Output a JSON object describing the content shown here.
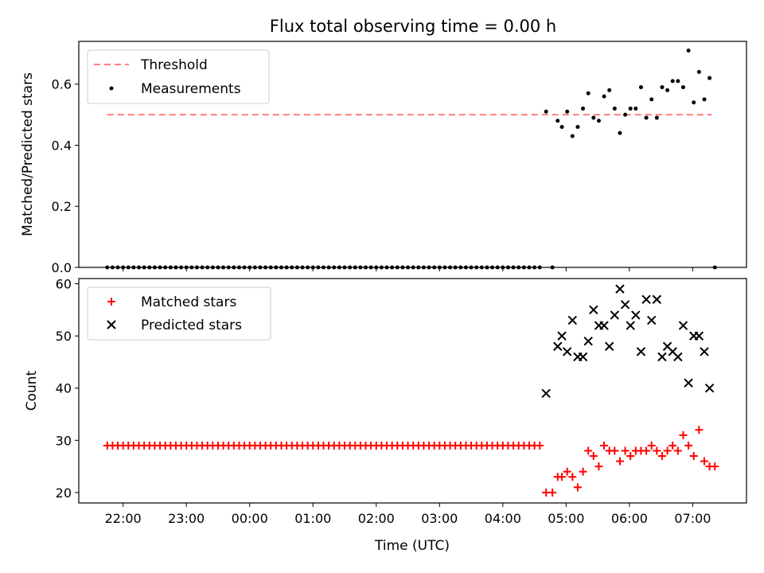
{
  "title": "Flux total observing time = 0.00 h",
  "colors": {
    "threshold": "#ff7f7f",
    "matched": "#ff0000",
    "predicted": "#000000",
    "measurement": "#000000"
  },
  "chart_data": [
    {
      "type": "scatter",
      "ylabel": "Matched/Predicted stars",
      "ylim": [
        0,
        0.74
      ],
      "yticks": [
        0.0,
        0.2,
        0.4,
        0.6
      ],
      "xlim_hours": [
        21.3,
        31.85
      ],
      "legend_position": "upper left",
      "legend": [
        {
          "key": "threshold",
          "label": "Threshold",
          "style": "dashed-line"
        },
        {
          "key": "measurements",
          "label": "Measurements",
          "style": "dot"
        }
      ],
      "threshold": {
        "x_start": "21:45",
        "x_end": "07:18",
        "y": 0.5
      },
      "series": [
        {
          "name": "Measurements",
          "zero_points": {
            "x_start": "21:45",
            "x_end": "04:37",
            "step_minutes": 5,
            "y": 0.0
          },
          "points": [
            [
              "04:41",
              0.51
            ],
            [
              "04:47",
              0.0
            ],
            [
              "04:52",
              0.48
            ],
            [
              "04:56",
              0.46
            ],
            [
              "05:01",
              0.51
            ],
            [
              "05:06",
              0.43
            ],
            [
              "05:11",
              0.46
            ],
            [
              "05:16",
              0.52
            ],
            [
              "05:21",
              0.57
            ],
            [
              "05:26",
              0.49
            ],
            [
              "05:31",
              0.48
            ],
            [
              "05:36",
              0.56
            ],
            [
              "05:41",
              0.58
            ],
            [
              "05:46",
              0.52
            ],
            [
              "05:51",
              0.44
            ],
            [
              "05:56",
              0.5
            ],
            [
              "06:01",
              0.52
            ],
            [
              "06:06",
              0.52
            ],
            [
              "06:11",
              0.59
            ],
            [
              "06:16",
              0.49
            ],
            [
              "06:21",
              0.55
            ],
            [
              "06:26",
              0.49
            ],
            [
              "06:31",
              0.59
            ],
            [
              "06:36",
              0.58
            ],
            [
              "06:41",
              0.61
            ],
            [
              "06:46",
              0.61
            ],
            [
              "06:51",
              0.59
            ],
            [
              "06:56",
              0.71
            ],
            [
              "07:01",
              0.54
            ],
            [
              "07:06",
              0.64
            ],
            [
              "07:11",
              0.55
            ],
            [
              "07:16",
              0.62
            ],
            [
              "07:21",
              0.0
            ]
          ]
        }
      ]
    },
    {
      "type": "scatter",
      "ylabel": "Count",
      "xlabel": "Time (UTC)",
      "ylim": [
        18,
        61
      ],
      "yticks": [
        20,
        30,
        40,
        50,
        60
      ],
      "xlim_hours": [
        21.3,
        31.85
      ],
      "xticks": [
        "22:00",
        "23:00",
        "00:00",
        "01:00",
        "02:00",
        "03:00",
        "04:00",
        "05:00",
        "06:00",
        "07:00"
      ],
      "legend_position": "upper left",
      "legend": [
        {
          "key": "matched",
          "label": "Matched stars",
          "style": "plus"
        },
        {
          "key": "predicted",
          "label": "Predicted stars",
          "style": "x"
        }
      ],
      "series": [
        {
          "name": "Matched stars",
          "constant_points": {
            "x_start": "21:45",
            "x_end": "04:37",
            "step_minutes": 5,
            "y": 29
          },
          "points": [
            [
              "04:41",
              20
            ],
            [
              "04:47",
              20
            ],
            [
              "04:52",
              23
            ],
            [
              "04:56",
              23
            ],
            [
              "05:01",
              24
            ],
            [
              "05:06",
              23
            ],
            [
              "05:11",
              21
            ],
            [
              "05:16",
              24
            ],
            [
              "05:21",
              28
            ],
            [
              "05:26",
              27
            ],
            [
              "05:31",
              25
            ],
            [
              "05:36",
              29
            ],
            [
              "05:41",
              28
            ],
            [
              "05:46",
              28
            ],
            [
              "05:51",
              26
            ],
            [
              "05:56",
              28
            ],
            [
              "06:01",
              27
            ],
            [
              "06:06",
              28
            ],
            [
              "06:11",
              28
            ],
            [
              "06:16",
              28
            ],
            [
              "06:21",
              29
            ],
            [
              "06:26",
              28
            ],
            [
              "06:31",
              27
            ],
            [
              "06:36",
              28
            ],
            [
              "06:41",
              29
            ],
            [
              "06:46",
              28
            ],
            [
              "06:51",
              31
            ],
            [
              "06:56",
              29
            ],
            [
              "07:01",
              27
            ],
            [
              "07:06",
              32
            ],
            [
              "07:11",
              26
            ],
            [
              "07:16",
              25
            ],
            [
              "07:21",
              25
            ]
          ]
        },
        {
          "name": "Predicted stars",
          "points": [
            [
              "04:41",
              39
            ],
            [
              "04:52",
              48
            ],
            [
              "04:56",
              50
            ],
            [
              "05:01",
              47
            ],
            [
              "05:06",
              53
            ],
            [
              "05:11",
              46
            ],
            [
              "05:16",
              46
            ],
            [
              "05:21",
              49
            ],
            [
              "05:26",
              55
            ],
            [
              "05:31",
              52
            ],
            [
              "05:36",
              52
            ],
            [
              "05:41",
              48
            ],
            [
              "05:46",
              54
            ],
            [
              "05:51",
              59
            ],
            [
              "05:56",
              56
            ],
            [
              "06:01",
              52
            ],
            [
              "06:06",
              54
            ],
            [
              "06:11",
              47
            ],
            [
              "06:16",
              57
            ],
            [
              "06:21",
              53
            ],
            [
              "06:26",
              57
            ],
            [
              "06:31",
              46
            ],
            [
              "06:36",
              48
            ],
            [
              "06:41",
              47
            ],
            [
              "06:46",
              46
            ],
            [
              "06:51",
              52
            ],
            [
              "06:56",
              41
            ],
            [
              "07:01",
              50
            ],
            [
              "07:06",
              50
            ],
            [
              "07:11",
              47
            ],
            [
              "07:16",
              40
            ]
          ]
        }
      ]
    }
  ]
}
